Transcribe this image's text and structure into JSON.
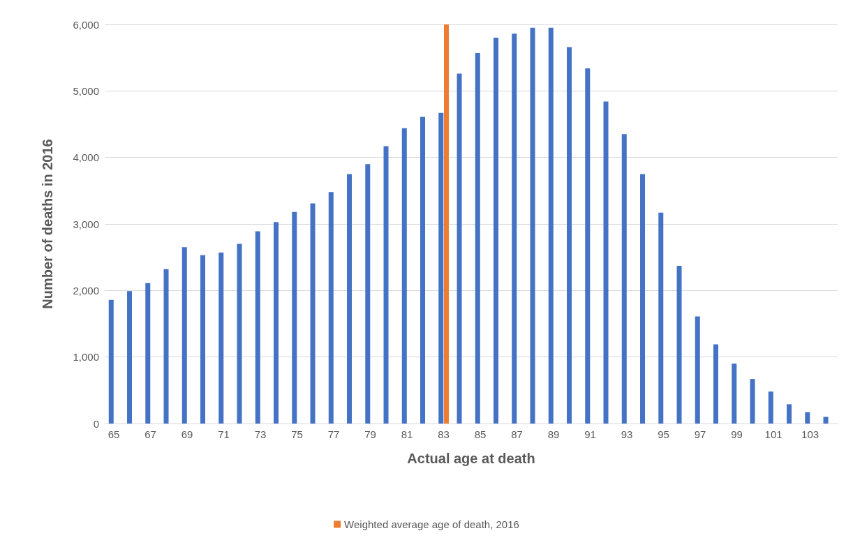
{
  "chart_data": {
    "type": "bar",
    "xlabel": "Actual age at death",
    "ylabel": "Number of deaths in 2016",
    "categories": [
      "65",
      null,
      "67",
      null,
      "69",
      null,
      "71",
      null,
      "73",
      null,
      "75",
      null,
      "77",
      null,
      "79",
      null,
      "81",
      null,
      "83",
      null,
      "85",
      null,
      "87",
      null,
      "89",
      null,
      "91",
      null,
      "93",
      null,
      "95",
      null,
      "97",
      null,
      "99",
      null,
      "101",
      null,
      "103",
      null
    ],
    "series": [
      {
        "color": "#4472c4",
        "values": [
          1860,
          1990,
          2110,
          2320,
          2650,
          2530,
          2570,
          2700,
          2890,
          3030,
          3180,
          3310,
          3480,
          3750,
          3900,
          4170,
          4440,
          4610,
          4670,
          5260,
          5570,
          5800,
          5860,
          5950,
          5950,
          5660,
          5340,
          4840,
          4350,
          3750,
          3170,
          2370,
          1610,
          1190,
          900,
          670,
          480,
          290,
          170,
          100
        ]
      },
      {
        "name": "Weighted average age of death, 2016",
        "color": "#ed7d31",
        "values": [
          null,
          null,
          null,
          null,
          null,
          null,
          null,
          null,
          null,
          null,
          null,
          null,
          null,
          null,
          null,
          null,
          null,
          null,
          6000,
          null,
          null,
          null,
          null,
          null,
          null,
          null,
          null,
          null,
          null,
          null,
          null,
          null,
          null,
          null,
          null,
          null,
          null,
          null,
          null,
          null
        ]
      }
    ],
    "ylim": [
      0,
      6000
    ],
    "yticks": [
      0,
      {
        "value": 1000,
        "label": "1,000"
      },
      {
        "value": 2000,
        "label": "2,000"
      },
      {
        "value": 3000,
        "label": "3,000"
      },
      {
        "value": 4000,
        "label": "4,000"
      },
      {
        "value": 5000,
        "label": "5,000"
      },
      {
        "value": 6000,
        "label": "6,000"
      }
    ],
    "grid": "y",
    "legend": "bottom"
  }
}
